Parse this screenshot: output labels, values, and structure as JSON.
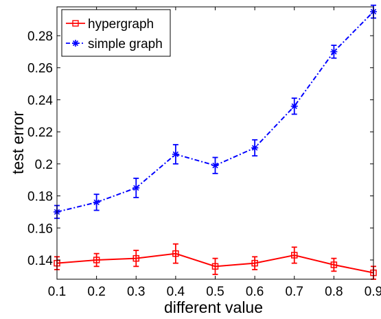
{
  "chart_data": {
    "type": "line",
    "xlabel": "different value",
    "ylabel": "test error",
    "x": [
      0.1,
      0.2,
      0.3,
      0.4,
      0.5,
      0.6,
      0.7,
      0.8,
      0.9
    ],
    "xlim": [
      0.1,
      0.9
    ],
    "ylim": [
      0.128,
      0.298
    ],
    "xticks": [
      "0.1",
      "0.2",
      "0.3",
      "0.4",
      "0.5",
      "0.6",
      "0.7",
      "0.8",
      "0.9"
    ],
    "yticks": [
      "0.14",
      "0.16",
      "0.18",
      "0.2",
      "0.22",
      "0.24",
      "0.26",
      "0.28"
    ],
    "ytick_values": [
      0.14,
      0.16,
      0.18,
      0.2,
      0.22,
      0.24,
      0.26,
      0.28
    ],
    "grid": false,
    "legend_position": "top-left",
    "series": [
      {
        "name": "hypergraph",
        "color": "#ff0000",
        "marker": "square",
        "line_style": "solid",
        "values": [
          0.138,
          0.14,
          0.141,
          0.144,
          0.136,
          0.138,
          0.143,
          0.137,
          0.132
        ],
        "errors": [
          0.004,
          0.004,
          0.005,
          0.006,
          0.005,
          0.004,
          0.005,
          0.004,
          0.004
        ]
      },
      {
        "name": "simple graph",
        "color": "#0000ff",
        "marker": "asterisk",
        "line_style": "dash-dot",
        "values": [
          0.17,
          0.176,
          0.185,
          0.206,
          0.199,
          0.21,
          0.236,
          0.27,
          0.295
        ],
        "errors": [
          0.004,
          0.005,
          0.006,
          0.006,
          0.005,
          0.005,
          0.005,
          0.004,
          0.004
        ]
      }
    ]
  }
}
